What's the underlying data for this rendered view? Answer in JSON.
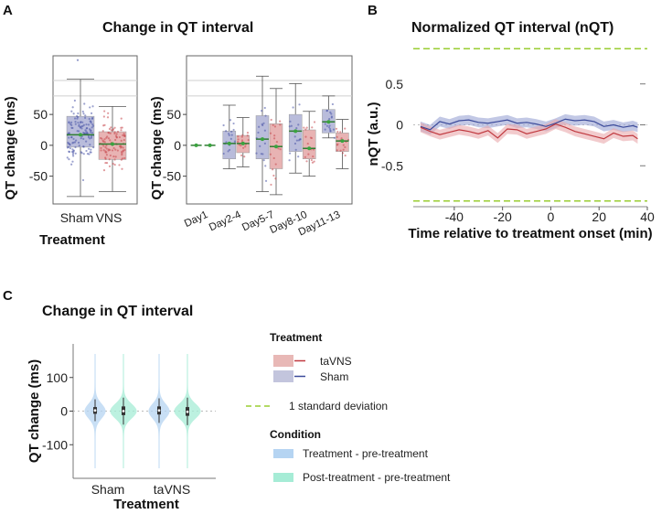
{
  "panels": {
    "a_label": "A",
    "b_label": "B",
    "c_label": "C"
  },
  "chart_data": [
    {
      "id": "A1",
      "type": "box",
      "title": "Change in QT interval",
      "xlabel": "Treatment",
      "ylabel": "QT change (ms)",
      "ylim": [
        -95,
        145
      ],
      "yticks": [
        50,
        0,
        -50
      ],
      "ytick_labels": [
        "50",
        "0",
        "-50"
      ],
      "categories": [
        "Sham",
        "VNS"
      ],
      "colors": [
        "#b9bcdb",
        "#e8b3b3"
      ],
      "point_colors": [
        "#4a56a8",
        "#c7474d"
      ],
      "boxes": [
        {
          "category": "Sham",
          "whislo": -83,
          "q1": -3,
          "med": 17,
          "q3": 47,
          "whishi": 107,
          "n": 130
        },
        {
          "category": "VNS",
          "whislo": -75,
          "q1": -23,
          "med": 2,
          "q3": 22,
          "whishi": 63,
          "n": 100
        }
      ]
    },
    {
      "id": "A2",
      "type": "box",
      "xlabel": "",
      "ylabel": "QT change (ms)",
      "ylim": [
        -95,
        145
      ],
      "yticks": [
        50,
        0,
        -50
      ],
      "ytick_labels": [
        "50",
        "0",
        "-50"
      ],
      "categories": [
        "Day1",
        "Day2-4",
        "Day5-7",
        "Day8-10",
        "Day11-13"
      ],
      "series": [
        {
          "name": "Sham",
          "color": "#b9bcdb",
          "point_color": "#4a56a8",
          "boxes": [
            {
              "whislo": 0,
              "q1": 0,
              "med": 0,
              "q3": 0,
              "whishi": 0
            },
            {
              "whislo": -38,
              "q1": -22,
              "med": 3,
              "q3": 23,
              "whishi": 65
            },
            {
              "whislo": -75,
              "q1": -22,
              "med": 10,
              "q3": 48,
              "whishi": 112
            },
            {
              "whislo": -45,
              "q1": -10,
              "med": 23,
              "q3": 50,
              "whishi": 100
            },
            {
              "whislo": 12,
              "q1": 20,
              "med": 38,
              "q3": 58,
              "whishi": 80
            }
          ]
        },
        {
          "name": "VNS",
          "color": "#e8b3b3",
          "point_color": "#c7474d",
          "boxes": [
            {
              "whislo": 0,
              "q1": 0,
              "med": 0,
              "q3": 0,
              "whishi": 0
            },
            {
              "whislo": -35,
              "q1": -12,
              "med": 3,
              "q3": 16,
              "whishi": 45
            },
            {
              "whislo": -80,
              "q1": -38,
              "med": -2,
              "q3": 35,
              "whishi": 92
            },
            {
              "whislo": -50,
              "q1": -22,
              "med": -5,
              "q3": 25,
              "whishi": 55
            },
            {
              "whislo": -38,
              "q1": -10,
              "med": 7,
              "q3": 20,
              "whishi": 42
            }
          ]
        }
      ]
    },
    {
      "id": "B",
      "type": "line",
      "title": "Normalized QT interval (nQT)",
      "xlabel": "Time relative to treatment onset (min)",
      "ylabel": "nQT (a.u.)",
      "xlim": [
        -57,
        40
      ],
      "ylim": [
        -1.0,
        1.0
      ],
      "xticks": [
        -40,
        -20,
        0,
        20,
        40
      ],
      "xtick_labels": [
        "-40",
        "-20",
        "0",
        "20",
        "40"
      ],
      "yticks": [
        0.5,
        0,
        -0.5
      ],
      "ytick_labels": [
        "0.5",
        "0",
        "-0.5"
      ],
      "hlines": [
        {
          "y": 0.93,
          "style": "dashed",
          "color": "#9acd32"
        },
        {
          "y": -0.93,
          "style": "dashed",
          "color": "#9acd32"
        },
        {
          "y": 0,
          "style": "dotted",
          "color": "#bbbbbb"
        }
      ],
      "x": [
        -54,
        -50,
        -46,
        -42,
        -38,
        -34,
        -30,
        -26,
        -22,
        -18,
        -14,
        -10,
        -6,
        -2,
        2,
        6,
        10,
        14,
        18,
        22,
        26,
        30,
        34,
        36
      ],
      "series": [
        {
          "name": "Sham",
          "color": "#3b4a9a",
          "band_color": "#9aa3d4",
          "values": [
            -0.02,
            -0.06,
            0.04,
            0.01,
            0.05,
            0.06,
            0.03,
            0.02,
            0.04,
            0.06,
            0.02,
            0.03,
            0.01,
            -0.02,
            0.02,
            0.07,
            0.05,
            0.06,
            0.04,
            -0.02,
            0.0,
            -0.03,
            -0.01,
            -0.03
          ],
          "ci": 0.06
        },
        {
          "name": "taVNS",
          "color": "#c0393f",
          "band_color": "#eaa9ab",
          "values": [
            -0.03,
            -0.08,
            -0.12,
            -0.09,
            -0.06,
            -0.08,
            -0.11,
            -0.07,
            -0.16,
            -0.05,
            -0.06,
            -0.11,
            -0.08,
            -0.05,
            0.01,
            -0.03,
            -0.08,
            -0.11,
            -0.14,
            -0.17,
            -0.1,
            -0.14,
            -0.13,
            -0.17
          ],
          "ci": 0.06
        }
      ]
    },
    {
      "id": "C",
      "type": "violin",
      "title": "Change in QT interval",
      "xlabel": "Treatment",
      "ylabel": "QT change (ms)",
      "ylim": [
        -200,
        200
      ],
      "yticks": [
        100,
        0,
        -100
      ],
      "ytick_labels": [
        "100",
        "0",
        "-100"
      ],
      "categories": [
        "Sham",
        "taVNS"
      ],
      "series": [
        {
          "name": "Treatment - pre-treatment",
          "color": "#b5d4f2",
          "boxes": [
            {
              "q1": -8,
              "med": 2,
              "q3": 12,
              "whislo": -30,
              "whishi": 35
            },
            {
              "q1": -10,
              "med": 2,
              "q3": 14,
              "whislo": -35,
              "whishi": 38
            }
          ]
        },
        {
          "name": "Post-treatment - pre-treatment",
          "color": "#a6ecd6",
          "boxes": [
            {
              "q1": -12,
              "med": 0,
              "q3": 14,
              "whislo": -40,
              "whishi": 40
            },
            {
              "q1": -14,
              "med": -2,
              "q3": 12,
              "whislo": -42,
              "whishi": 40
            }
          ]
        }
      ]
    }
  ],
  "legend": {
    "treatment_title": "Treatment",
    "treatment_items": [
      {
        "label": "taVNS",
        "fill": "#e8b8b6",
        "line": "#c0393f"
      },
      {
        "label": "Sham",
        "fill": "#c3c5dd",
        "line": "#3b4a9a"
      }
    ],
    "sd_label": "1 standard deviation",
    "sd_color": "#9acd32",
    "condition_title": "Condition",
    "condition_items": [
      {
        "label": "Treatment - pre-treatment",
        "fill": "#b5d4f2"
      },
      {
        "label": "Post-treatment - pre-treatment",
        "fill": "#a6ecd6"
      }
    ]
  }
}
